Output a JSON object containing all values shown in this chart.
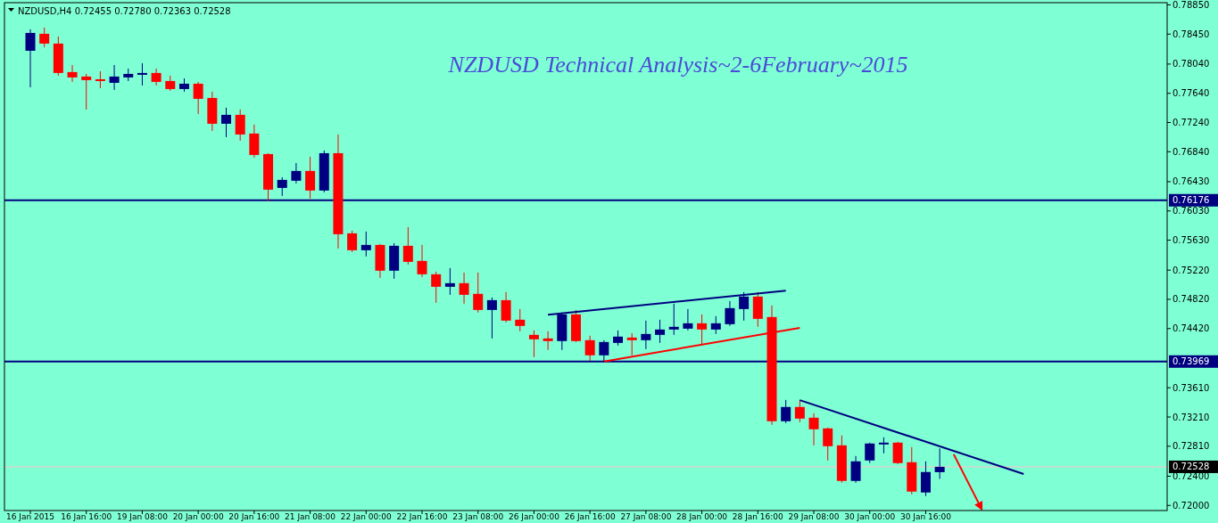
{
  "chart_data": {
    "type": "candlestick",
    "title": "NZDUSD Technical Analysis~2-6February~2015",
    "subtitle": "NZDUSD,H4  0.72455 0.72780 0.72363 0.72528",
    "categories": [
      "16 Jan 2015",
      null,
      null,
      null,
      "16 Jan 16:00",
      null,
      null,
      null,
      "19 Jan 08:00",
      null,
      null,
      null,
      "20 Jan 00:00",
      null,
      null,
      null,
      "20 Jan 16:00",
      null,
      null,
      null,
      "21 Jan 08:00",
      null,
      null,
      null,
      "22 Jan 00:00",
      null,
      null,
      null,
      "22 Jan 16:00",
      null,
      null,
      null,
      "23 Jan 08:00",
      null,
      null,
      null,
      "26 Jan 00:00",
      null,
      null,
      null,
      "26 Jan 16:00",
      null,
      null,
      null,
      "27 Jan 08:00",
      null,
      null,
      null,
      "28 Jan 00:00",
      null,
      null,
      null,
      "28 Jan 16:00",
      null,
      null,
      null,
      "29 Jan 08:00",
      null,
      null,
      null,
      "30 Jan 00:00",
      null,
      null,
      null,
      "30 Jan 16:00",
      null,
      null,
      null,
      null,
      null,
      null,
      null,
      null,
      null,
      null,
      null,
      null,
      null,
      null,
      null,
      null,
      null
    ],
    "ohlc": [
      [
        0.78222,
        0.78515,
        0.77722,
        0.78466
      ],
      [
        0.78454,
        0.78539,
        0.78271,
        0.7832
      ],
      [
        0.7832,
        0.78417,
        0.77881,
        0.77918
      ],
      [
        0.7793,
        0.78027,
        0.77796,
        0.77857
      ],
      [
        0.77869,
        0.77905,
        0.77418,
        0.7782
      ],
      [
        0.77832,
        0.77942,
        0.7771,
        0.77808
      ],
      [
        0.77783,
        0.78027,
        0.77686,
        0.77869
      ],
      [
        0.77857,
        0.77978,
        0.77808,
        0.77905
      ],
      [
        0.77893,
        0.78052,
        0.77747,
        0.77918
      ],
      [
        0.77918,
        0.77978,
        0.77747,
        0.77796
      ],
      [
        0.77808,
        0.77881,
        0.77674,
        0.77698
      ],
      [
        0.77698,
        0.77844,
        0.77662,
        0.77771
      ],
      [
        0.77771,
        0.77796,
        0.77357,
        0.77564
      ],
      [
        0.77576,
        0.77662,
        0.77125,
        0.77223
      ],
      [
        0.77223,
        0.77442,
        0.7704,
        0.77345
      ],
      [
        0.77345,
        0.77418,
        0.76991,
        0.77076
      ],
      [
        0.77089,
        0.77211,
        0.7676,
        0.76796
      ],
      [
        0.76808,
        0.7682,
        0.76162,
        0.76321
      ],
      [
        0.76345,
        0.76491,
        0.76235,
        0.76455
      ],
      [
        0.76443,
        0.76686,
        0.76406,
        0.76577
      ],
      [
        0.76577,
        0.76772,
        0.76199,
        0.76309
      ],
      [
        0.76309,
        0.76857,
        0.76284,
        0.7682
      ],
      [
        0.7682,
        0.77076,
        0.75516,
        0.75711
      ],
      [
        0.75723,
        0.7576,
        0.75467,
        0.75492
      ],
      [
        0.75492,
        0.75748,
        0.75407,
        0.75565
      ],
      [
        0.75565,
        0.75577,
        0.75114,
        0.75212
      ],
      [
        0.75212,
        0.75589,
        0.75102,
        0.75553
      ],
      [
        0.75553,
        0.75809,
        0.75297,
        0.75333
      ],
      [
        0.75346,
        0.75565,
        0.75126,
        0.75163
      ],
      [
        0.75163,
        0.75199,
        0.74773,
        0.74992
      ],
      [
        0.74992,
        0.75248,
        0.74882,
        0.75041
      ],
      [
        0.75041,
        0.75187,
        0.74761,
        0.74882
      ],
      [
        0.74895,
        0.75187,
        0.74639,
        0.74675
      ],
      [
        0.74675,
        0.74846,
        0.74285,
        0.74809
      ],
      [
        0.74809,
        0.74919,
        0.74505,
        0.74529
      ],
      [
        0.74541,
        0.74687,
        0.74383,
        0.74456
      ],
      [
        0.74334,
        0.74395,
        0.74029,
        0.74273
      ],
      [
        0.74285,
        0.74383,
        0.74127,
        0.74249
      ],
      [
        0.74249,
        0.74639,
        0.74127,
        0.74614
      ],
      [
        0.74614,
        0.74675,
        0.74236,
        0.74249
      ],
      [
        0.74261,
        0.74322,
        0.7398,
        0.74054
      ],
      [
        0.74054,
        0.74261,
        0.73956,
        0.74236
      ],
      [
        0.74224,
        0.74395,
        0.74188,
        0.7431
      ],
      [
        0.74297,
        0.74358,
        0.74054,
        0.74261
      ],
      [
        0.74261,
        0.74529,
        0.74139,
        0.74346
      ],
      [
        0.74334,
        0.74541,
        0.74224,
        0.74407
      ],
      [
        0.74407,
        0.74761,
        0.74334,
        0.74444
      ],
      [
        0.74419,
        0.74687,
        0.74395,
        0.74492
      ],
      [
        0.74492,
        0.74614,
        0.742,
        0.74407
      ],
      [
        0.74407,
        0.7459,
        0.74346,
        0.74492
      ],
      [
        0.7448,
        0.74797,
        0.74456,
        0.747
      ],
      [
        0.74687,
        0.74919,
        0.74529,
        0.74858
      ],
      [
        0.74858,
        0.74919,
        0.74444,
        0.74553
      ],
      [
        0.74578,
        0.74736,
        0.73103,
        0.73152
      ],
      [
        0.73152,
        0.73444,
        0.73127,
        0.73347
      ],
      [
        0.73347,
        0.73444,
        0.73139,
        0.73188
      ],
      [
        0.732,
        0.73261,
        0.72822,
        0.73042
      ],
      [
        0.73054,
        0.73066,
        0.72615,
        0.7281
      ],
      [
        0.72822,
        0.72957,
        0.72311,
        0.72335
      ],
      [
        0.72335,
        0.72676,
        0.72311,
        0.72603
      ],
      [
        0.72615,
        0.72859,
        0.72579,
        0.72847
      ],
      [
        0.72835,
        0.72932,
        0.72713,
        0.72859
      ],
      [
        0.72859,
        0.72871,
        0.72567,
        0.72579
      ],
      [
        0.72591,
        0.72798,
        0.72152,
        0.72189
      ],
      [
        0.72177,
        0.72603,
        0.72128,
        0.72457
      ],
      [
        0.72455,
        0.7278,
        0.72363,
        0.72528
      ],
      null,
      null,
      null,
      null,
      null,
      null,
      null,
      null,
      null,
      null,
      null,
      null,
      null,
      null,
      null,
      null
    ],
    "colors": [
      "#000080",
      "#ff0000",
      "#ff0000",
      "#ff0000",
      "#ff0000",
      "#ff0000",
      "#000080",
      "#000080",
      "#000080",
      "#ff0000",
      "#ff0000",
      "#000080",
      "#ff0000",
      "#ff0000",
      "#000080",
      "#ff0000",
      "#ff0000",
      "#ff0000",
      "#000080",
      "#000080",
      "#ff0000",
      "#000080",
      "#ff0000",
      "#ff0000",
      "#000080",
      "#ff0000",
      "#000080",
      "#ff0000",
      "#ff0000",
      "#ff0000",
      "#000080",
      "#ff0000",
      "#ff0000",
      "#000080",
      "#ff0000",
      "#ff0000",
      "#ff0000",
      "#ff0000",
      "#000080",
      "#ff0000",
      "#ff0000",
      "#000080",
      "#000080",
      "#ff0000",
      "#000080",
      "#000080",
      "#000080",
      "#000080",
      "#ff0000",
      "#000080",
      "#000080",
      "#000080",
      "#ff0000",
      "#ff0000",
      "#000080",
      "#ff0000",
      "#ff0000",
      "#ff0000",
      "#ff0000",
      "#000080",
      "#000080",
      "#000080",
      "#ff0000",
      "#ff0000",
      "#000080",
      "#000080",
      null,
      null,
      null,
      null,
      null,
      null,
      null,
      null,
      null,
      null,
      null,
      null,
      null,
      null,
      null,
      null
    ],
    "series": [
      {
        "type": "line",
        "color": "#000080",
        "values": [
          null,
          null,
          null,
          null,
          null,
          null,
          null,
          null,
          null,
          null,
          null,
          null,
          null,
          null,
          null,
          null,
          null,
          null,
          null,
          null,
          null,
          null,
          null,
          null,
          null,
          null,
          null,
          null,
          null,
          null,
          null,
          null,
          null,
          null,
          null,
          null,
          null,
          0.7461,
          null,
          null,
          null,
          null,
          null,
          null,
          null,
          null,
          null,
          null,
          null,
          null,
          null,
          null,
          null,
          null,
          0.7494,
          null,
          null,
          null,
          null,
          null,
          null,
          null,
          null,
          null,
          null,
          null,
          null,
          null,
          null,
          null,
          null,
          null,
          null,
          null,
          null,
          null,
          null,
          null,
          null,
          null,
          null,
          null
        ]
      },
      {
        "type": "line",
        "color": "#ff0000",
        "values": [
          null,
          null,
          null,
          null,
          null,
          null,
          null,
          null,
          null,
          null,
          null,
          null,
          null,
          null,
          null,
          null,
          null,
          null,
          null,
          null,
          null,
          null,
          null,
          null,
          null,
          null,
          null,
          null,
          null,
          null,
          null,
          null,
          null,
          null,
          null,
          null,
          null,
          null,
          null,
          null,
          null,
          0.7397,
          null,
          null,
          null,
          null,
          null,
          null,
          null,
          null,
          null,
          null,
          null,
          null,
          null,
          0.7443,
          null,
          null,
          null,
          null,
          null,
          null,
          null,
          null,
          null,
          null,
          null,
          null,
          null,
          null,
          null,
          null,
          null,
          null,
          null,
          null,
          null,
          null,
          null,
          null,
          null,
          null
        ]
      },
      {
        "type": "line",
        "color": "#000080",
        "values": [
          null,
          null,
          null,
          null,
          null,
          null,
          null,
          null,
          null,
          null,
          null,
          null,
          null,
          null,
          null,
          null,
          null,
          null,
          null,
          null,
          null,
          null,
          null,
          null,
          null,
          null,
          null,
          null,
          null,
          null,
          null,
          null,
          null,
          null,
          null,
          null,
          null,
          null,
          null,
          null,
          null,
          null,
          null,
          null,
          null,
          null,
          null,
          null,
          null,
          null,
          null,
          null,
          null,
          null,
          null,
          0.7344,
          null,
          null,
          null,
          null,
          null,
          null,
          null,
          null,
          null,
          null,
          null,
          null,
          null,
          null,
          null,
          0.7243,
          null,
          null,
          null,
          null,
          null,
          null,
          null,
          null,
          null,
          null
        ]
      },
      {
        "type": "line",
        "color": "#ff0000",
        "values": [
          null,
          null,
          null,
          null,
          null,
          null,
          null,
          null,
          null,
          null,
          null,
          null,
          null,
          null,
          null,
          null,
          null,
          null,
          null,
          null,
          null,
          null,
          null,
          null,
          null,
          null,
          null,
          null,
          null,
          null,
          null,
          null,
          null,
          null,
          null,
          null,
          null,
          null,
          null,
          null,
          null,
          null,
          null,
          null,
          null,
          null,
          null,
          null,
          null,
          null,
          null,
          null,
          null,
          null,
          null,
          null,
          null,
          null,
          null,
          null,
          null,
          null,
          null,
          null,
          null,
          null,
          0.727,
          null,
          0.7195,
          null,
          null,
          null,
          null,
          null,
          null,
          null,
          null,
          null,
          null,
          null,
          null,
          null
        ]
      }
    ],
    "ref_lines": [
      {
        "axis": "y",
        "value": 0.76176,
        "label": "0.76176",
        "color": "#000080"
      },
      {
        "axis": "y",
        "value": 0.73969,
        "label": "0.73969",
        "color": "#000080"
      },
      {
        "axis": "y",
        "value": 0.72528,
        "label": "0.72528",
        "color": "#ffc0cb"
      }
    ],
    "ylim": [
      0.7193,
      0.7888
    ],
    "yticks": [
      {
        "value": 0.7885,
        "label": "0.78850"
      },
      {
        "value": 0.7845,
        "label": "0.78450"
      },
      {
        "value": 0.7804,
        "label": "0.78040"
      },
      {
        "value": 0.7764,
        "label": "0.77640"
      },
      {
        "value": 0.7724,
        "label": "0.77240"
      },
      {
        "value": 0.7684,
        "label": "0.76840"
      },
      {
        "value": 0.7643,
        "label": "0.76430"
      },
      {
        "value": 0.7603,
        "label": "0.76030"
      },
      {
        "value": 0.7563,
        "label": "0.75630"
      },
      {
        "value": 0.7522,
        "label": "0.75220"
      },
      {
        "value": 0.7482,
        "label": "0.74820"
      },
      {
        "value": 0.7442,
        "label": "0.74420"
      },
      {
        "value": 0.7361,
        "label": "0.73610"
      },
      {
        "value": 0.7321,
        "label": "0.73210"
      },
      {
        "value": 0.7281,
        "label": "0.72810"
      },
      {
        "value": 0.724,
        "label": "0.72400"
      },
      {
        "value": 0.72,
        "label": "0.72000"
      }
    ],
    "grid": false
  }
}
